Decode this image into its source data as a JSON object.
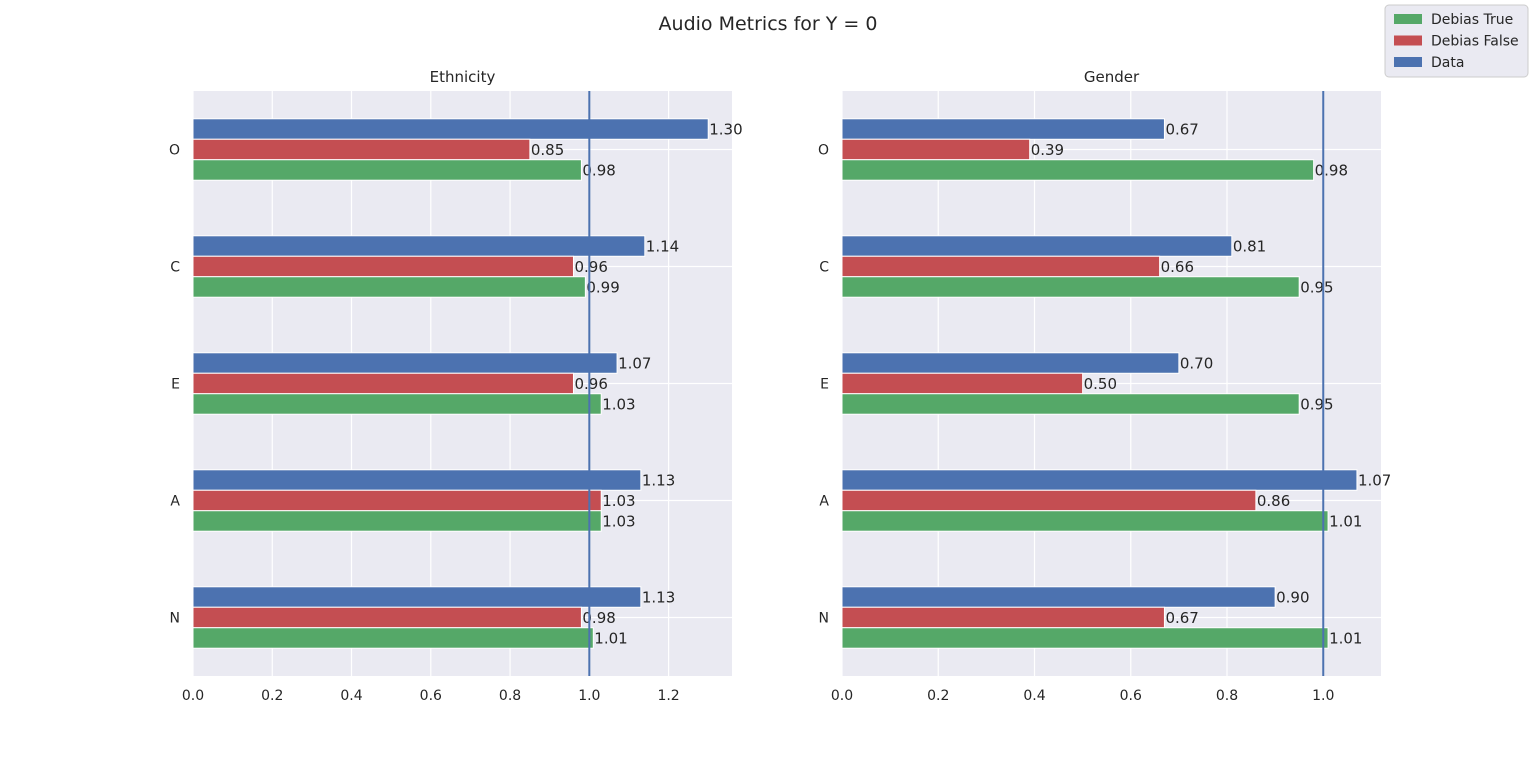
{
  "figure": {
    "title": "Audio Metrics for Y = 0"
  },
  "legend": {
    "placement": "top-right",
    "entries": [
      {
        "label": "Debias True",
        "color": "#55a868"
      },
      {
        "label": "Debias False",
        "color": "#c44e52"
      },
      {
        "label": "Data",
        "color": "#4c72b0"
      }
    ]
  },
  "chart_data": [
    {
      "type": "bar",
      "orientation": "horizontal",
      "title": "Ethnicity",
      "categories": [
        "O",
        "C",
        "E",
        "A",
        "N"
      ],
      "xlim": [
        0,
        1.36
      ],
      "xticks": [
        "0.0",
        "0.2",
        "0.4",
        "0.6",
        "0.8",
        "1.0",
        "1.2"
      ],
      "xtick_values": [
        0,
        0.2,
        0.4,
        0.6,
        0.8,
        1.0,
        1.2
      ],
      "reference_line": 1.0,
      "grid": true,
      "series": [
        {
          "name": "Data",
          "color": "#4c72b0",
          "values": [
            1.3,
            1.14,
            1.07,
            1.13,
            1.13
          ],
          "labels": [
            "1.30",
            "1.14",
            "1.07",
            "1.13",
            "1.13"
          ]
        },
        {
          "name": "Debias False",
          "color": "#c44e52",
          "values": [
            0.85,
            0.96,
            0.96,
            1.03,
            0.98
          ],
          "labels": [
            "0.85",
            "0.96",
            "0.96",
            "1.03",
            "0.98"
          ]
        },
        {
          "name": "Debias True",
          "color": "#55a868",
          "values": [
            0.98,
            0.99,
            1.03,
            1.03,
            1.01
          ],
          "labels": [
            "0.98",
            "0.99",
            "1.03",
            "1.03",
            "1.01"
          ]
        }
      ]
    },
    {
      "type": "bar",
      "orientation": "horizontal",
      "title": "Gender",
      "categories": [
        "O",
        "C",
        "E",
        "A",
        "N"
      ],
      "xlim": [
        0,
        1.12
      ],
      "xticks": [
        "0.0",
        "0.2",
        "0.4",
        "0.6",
        "0.8",
        "1.0"
      ],
      "xtick_values": [
        0,
        0.2,
        0.4,
        0.6,
        0.8,
        1.0
      ],
      "reference_line": 1.0,
      "grid": true,
      "series": [
        {
          "name": "Data",
          "color": "#4c72b0",
          "values": [
            0.67,
            0.81,
            0.7,
            1.07,
            0.9
          ],
          "labels": [
            "0.67",
            "0.81",
            "0.70",
            "1.07",
            "0.90"
          ]
        },
        {
          "name": "Debias False",
          "color": "#c44e52",
          "values": [
            0.39,
            0.66,
            0.5,
            0.86,
            0.67
          ],
          "labels": [
            "0.39",
            "0.66",
            "0.50",
            "0.86",
            "0.67"
          ]
        },
        {
          "name": "Debias True",
          "color": "#55a868",
          "values": [
            0.98,
            0.95,
            0.95,
            1.01,
            1.01
          ],
          "labels": [
            "0.98",
            "0.95",
            "0.95",
            "1.01",
            "1.01"
          ]
        }
      ]
    }
  ]
}
